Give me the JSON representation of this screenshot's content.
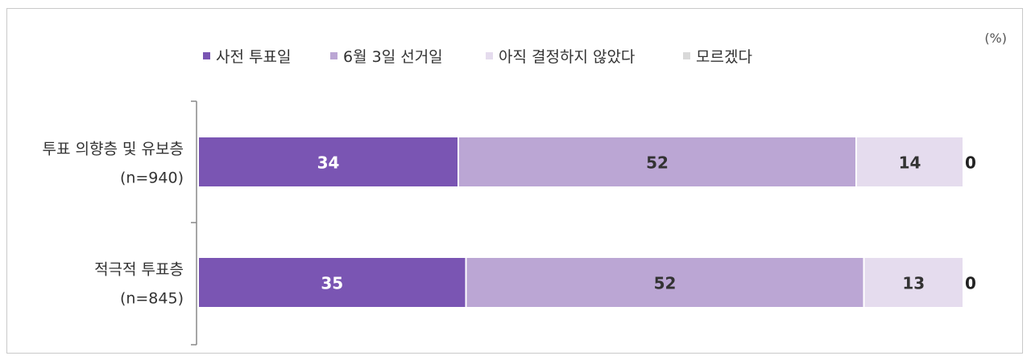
{
  "chart_data": {
    "type": "bar",
    "orientation": "horizontal",
    "stacked": true,
    "unit_label": "(%)",
    "categories": [
      [
        "투표 의향층 및 유보층",
        "(n=940)"
      ],
      [
        "적극적 투표층",
        "(n=845)"
      ]
    ],
    "series": [
      {
        "name": "사전 투표일",
        "color": "#7a55b3",
        "label_color": "#ffffff",
        "values": [
          34,
          35
        ]
      },
      {
        "name": "6월 3일 선거일",
        "color": "#bba6d4",
        "label_color": "#333333",
        "values": [
          52,
          52
        ]
      },
      {
        "name": "아직 결정하지 않았다",
        "color": "#e5dcee",
        "label_color": "#333333",
        "values": [
          14,
          13
        ]
      },
      {
        "name": "모르겠다",
        "color": "#d9d9d9",
        "label_color": "#222222",
        "values": [
          0,
          0
        ]
      }
    ],
    "xlim": [
      0,
      100
    ],
    "legend_position": "top",
    "grid": false
  }
}
